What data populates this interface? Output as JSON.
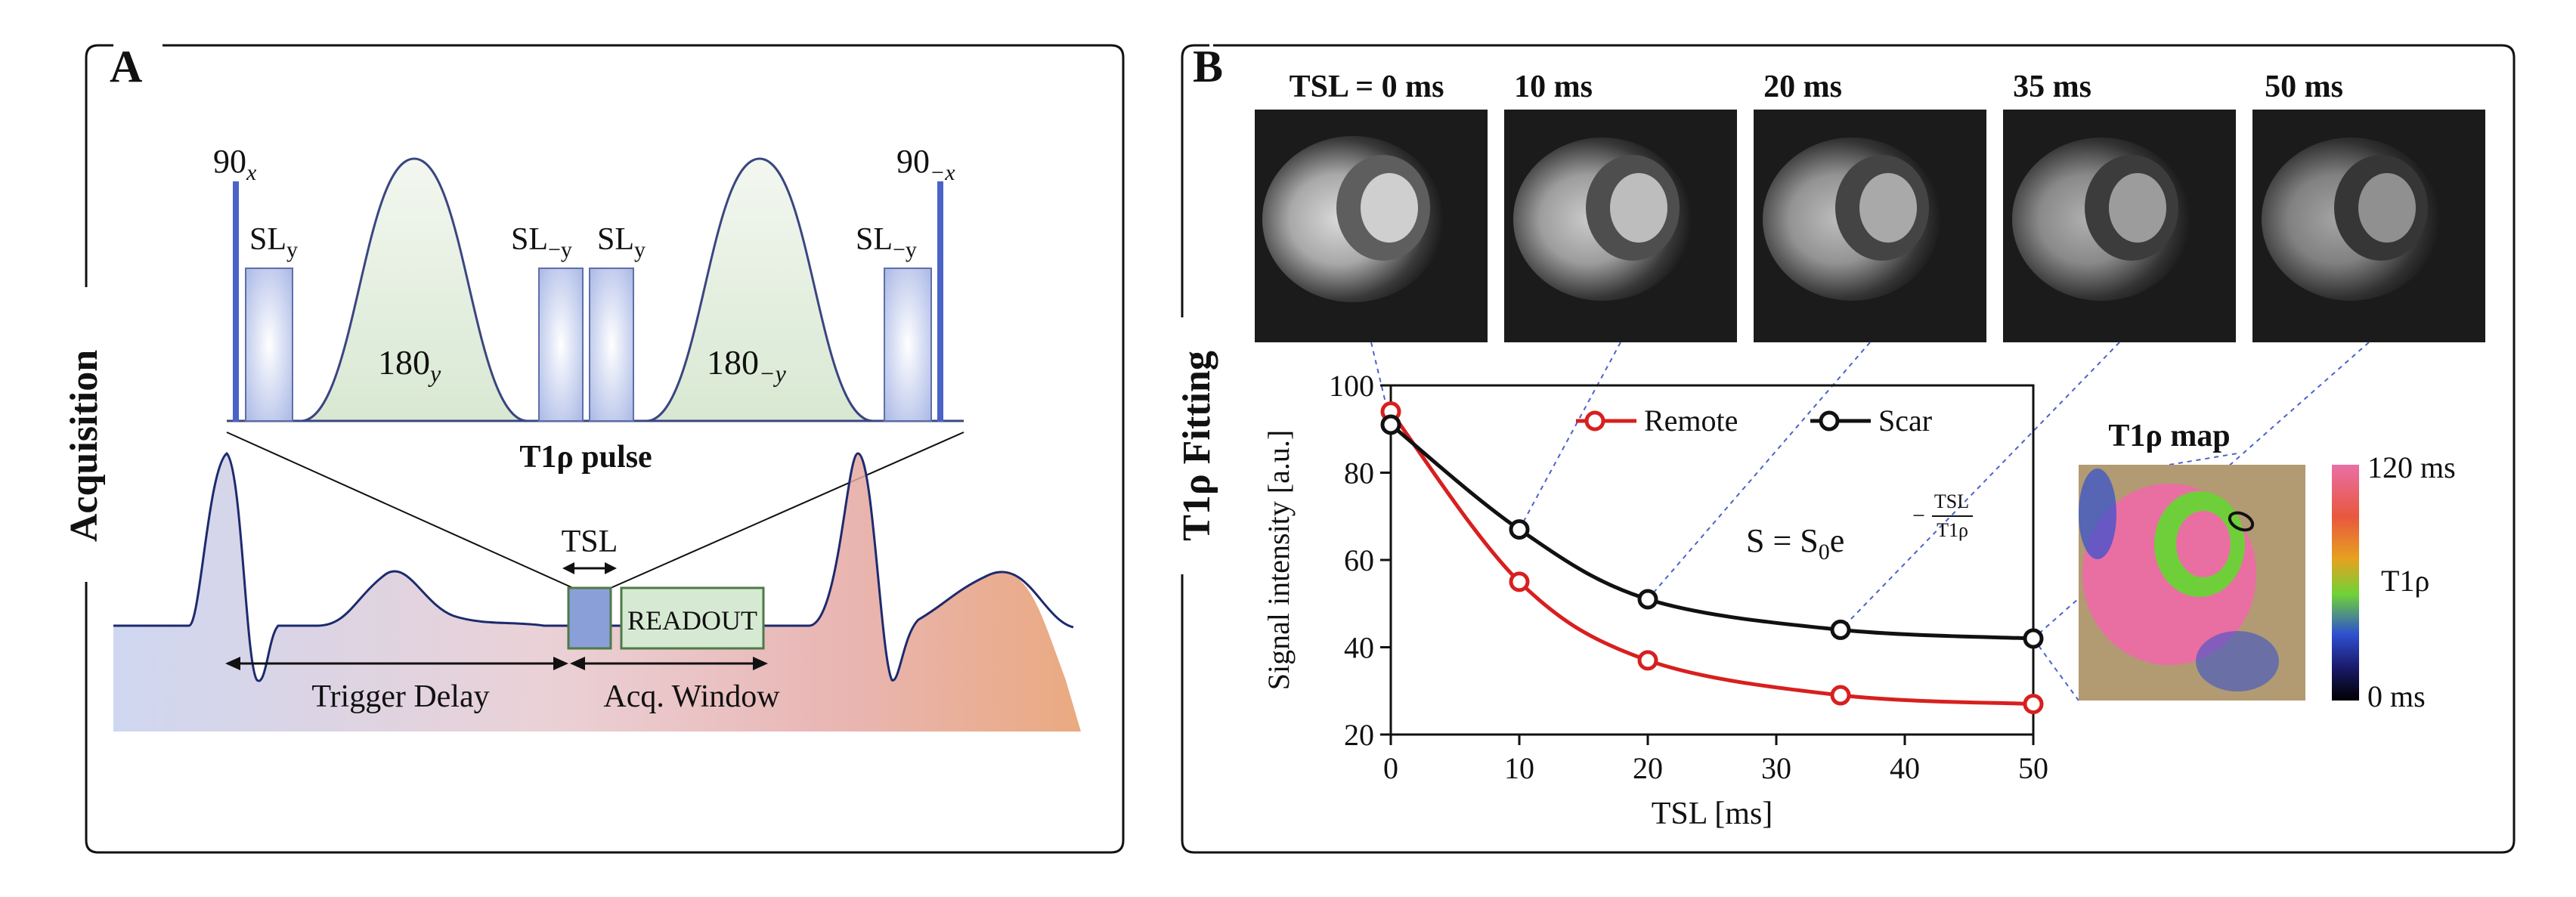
{
  "colors": {
    "frame": "#111111",
    "rf_pulse": "#4a63c9",
    "pulse_fill": "#e8f0e4",
    "pulse_stroke": "#3a4680",
    "sl_fill": "#c9d3ef",
    "ecg_line": "#1d2a6e",
    "tsl_box": "#8a9fd8",
    "readout_box": "#d6ead3",
    "readout_stroke": "#4f7a46",
    "remote": "#d81f1f",
    "scar": "#111111",
    "fit_line_guides": "#4a63c9",
    "colorbar_top": "#e96fa3",
    "colorbar_bottom": "#000000"
  },
  "panel_a": {
    "letter": "A",
    "side_label": "Acquisition",
    "rf_90_left": "90",
    "rf_90_left_sub": "x",
    "rf_90_right": "90",
    "rf_90_right_sub": "−x",
    "sl_labels": [
      {
        "main": "SL",
        "sub": "y"
      },
      {
        "main": "SL",
        "sub": "−y"
      },
      {
        "main": "SL",
        "sub": "y"
      },
      {
        "main": "SL",
        "sub": "−y"
      }
    ],
    "pulse_180_left": "180",
    "pulse_180_left_sub": "y",
    "pulse_180_right": "180",
    "pulse_180_right_sub": "−y",
    "pulse_title": "T1ρ pulse",
    "tsl_label": "TSL",
    "readout_label": "READOUT",
    "trigger_delay_label": "Trigger Delay",
    "acq_window_label": "Acq. Window"
  },
  "panel_b": {
    "letter": "B",
    "side_label": "T1ρ Fitting",
    "image_titles": [
      "TSL = 0 ms",
      "10 ms",
      "20 ms",
      "35 ms",
      "50 ms"
    ],
    "equation_lhs": "S = S",
    "equation_sub": "0",
    "equation_e": "e",
    "equation_exp_num": "TSL",
    "equation_exp_den": "T1ρ",
    "map_title": "T1ρ map",
    "colorbar_top": "120 ms",
    "colorbar_mid": "T1ρ",
    "colorbar_bottom": "0 ms"
  },
  "chart_data": {
    "type": "line",
    "xlabel": "TSL [ms]",
    "ylabel": "Signal intensity [a.u.]",
    "xlim": [
      0,
      50
    ],
    "ylim": [
      20,
      100
    ],
    "xticks": [
      0,
      10,
      20,
      30,
      40,
      50
    ],
    "yticks": [
      20,
      40,
      60,
      80,
      100
    ],
    "grid": false,
    "legend_position": "top",
    "series": [
      {
        "name": "Remote",
        "color": "#d81f1f",
        "x": [
          0,
          10,
          20,
          35,
          50
        ],
        "y": [
          94,
          55,
          37,
          29,
          27
        ]
      },
      {
        "name": "Scar",
        "color": "#111111",
        "x": [
          0,
          10,
          20,
          35,
          50
        ],
        "y": [
          91,
          67,
          51,
          44,
          42
        ]
      }
    ]
  }
}
